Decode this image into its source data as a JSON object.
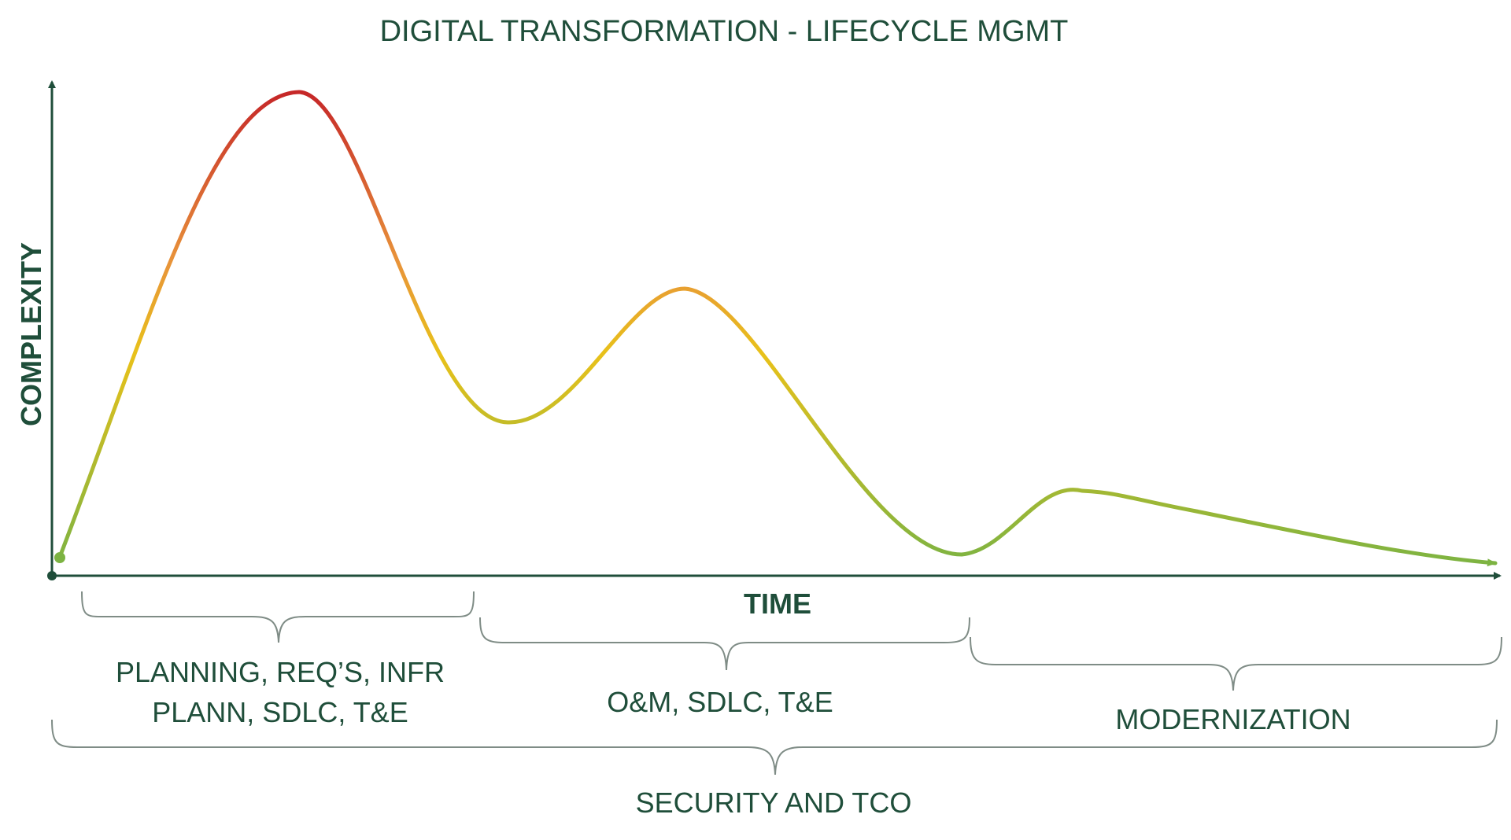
{
  "diagram": {
    "title": "DIGITAL TRANSFORMATION - LIFECYCLE MGMT",
    "y_axis_label": "COMPLEXITY",
    "x_axis_label": "TIME",
    "phases": [
      {
        "id": "planning",
        "lines": [
          "PLANNING, REQ’S, INFR",
          "PLANN, SDLC, T&E"
        ]
      },
      {
        "id": "om",
        "lines": [
          "O&M, SDLC, T&E"
        ]
      },
      {
        "id": "modernization",
        "lines": [
          "MODERNIZATION"
        ]
      }
    ],
    "overall": {
      "label": "SECURITY AND TCO"
    }
  },
  "colors": {
    "text": "#1f4e3a",
    "axis": "#1f4e3a",
    "brace": "#7f8c86",
    "curve_low": "#7cb342",
    "curve_mid": "#e8c11a",
    "curve_high": "#c62828"
  }
}
